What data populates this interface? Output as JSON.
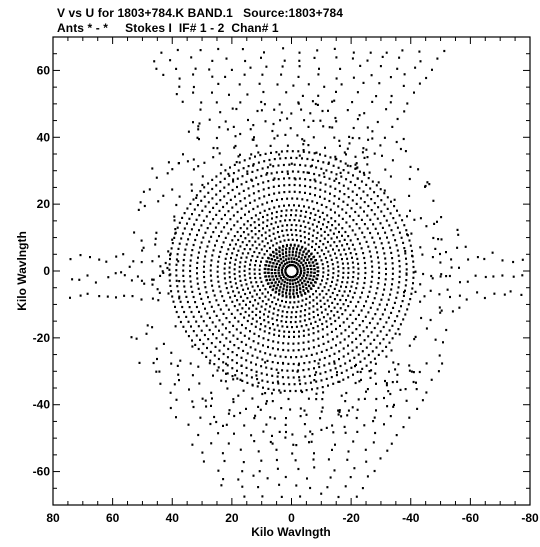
{
  "header": {
    "line1": "V vs U for 1803+784.K BAND.1   Source:1803+784",
    "line2": "Ants * - *     Stokes I  IF# 1 - 2  Chan# 1"
  },
  "chart_data": {
    "type": "scatter",
    "xlabel": "Kilo Wavlngth",
    "ylabel": "Kilo Wavlngth",
    "xlim": [
      80,
      -80
    ],
    "ylim": [
      -70,
      70
    ],
    "xticks": [
      80,
      60,
      40,
      20,
      0,
      -20,
      -40,
      -60,
      -80
    ],
    "yticks": [
      60,
      40,
      20,
      0,
      -20,
      -40,
      -60
    ],
    "x_reversed": true,
    "grid": false,
    "point_color": "#000000",
    "pattern": {
      "description_units": "kilo-wavelength",
      "core_rings_radius_range": [
        2,
        40
      ],
      "north_arm_v_range": [
        27,
        68
      ],
      "south_arm_v_range": [
        -67,
        -27
      ],
      "east_arm_u_range": [
        38,
        76
      ],
      "west_arm_u_range": [
        -38,
        -78
      ]
    }
  }
}
